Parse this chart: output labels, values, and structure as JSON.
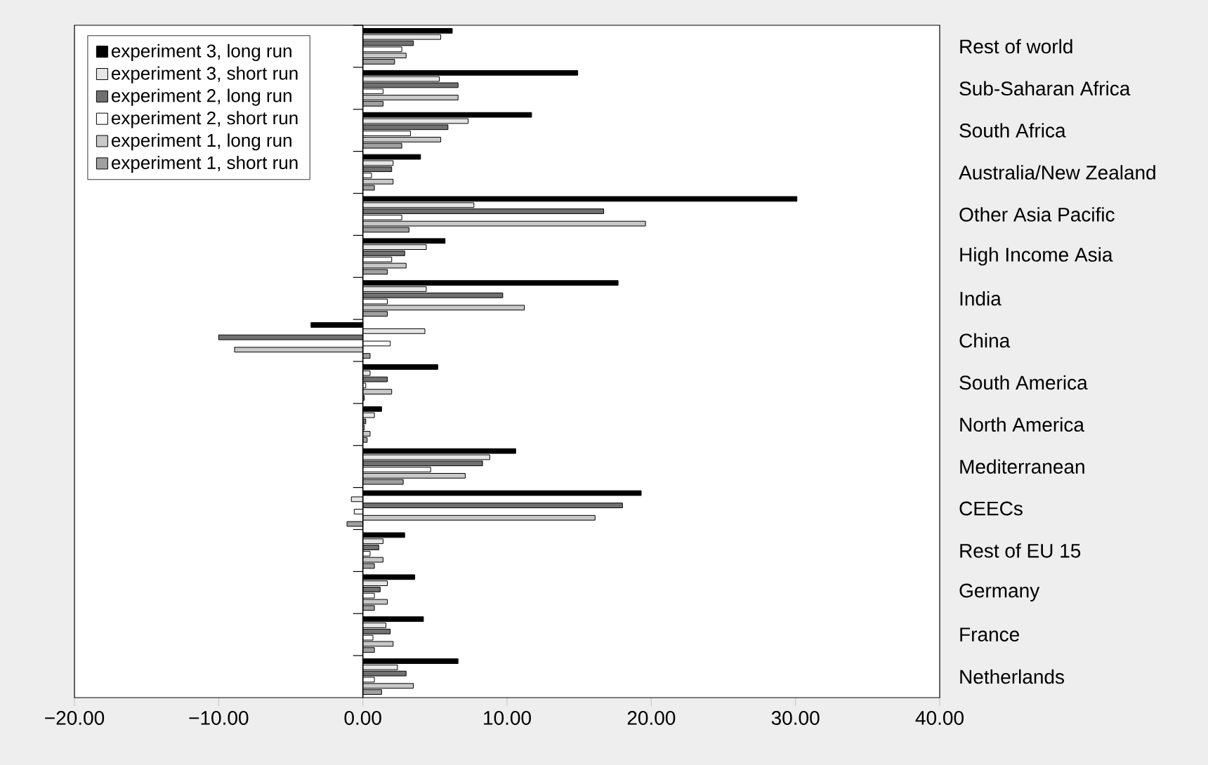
{
  "chart_data": {
    "type": "bar",
    "orientation": "horizontal",
    "categories": [
      "Rest of world",
      "Sub-Saharan Africa",
      "South Africa",
      "Australia/New Zealand",
      "Other Asia Pacific",
      "High Income Asia",
      "India",
      "China",
      "South America",
      "North America",
      "Mediterranean",
      "CEECs",
      "Rest of EU 15",
      "Germany",
      "France",
      "Netherlands"
    ],
    "series": [
      {
        "name": "experiment 3, long run",
        "color": "#000000",
        "values": [
          6.2,
          14.9,
          11.7,
          4.0,
          30.1,
          5.7,
          17.7,
          -3.6,
          5.2,
          1.3,
          10.6,
          19.3,
          2.9,
          3.6,
          4.2,
          6.6
        ]
      },
      {
        "name": "experiment 3, short run",
        "color": "#e6e6e6",
        "values": [
          5.4,
          5.3,
          7.3,
          2.1,
          7.7,
          4.4,
          4.4,
          4.3,
          0.5,
          0.8,
          8.8,
          -0.8,
          1.4,
          1.7,
          1.6,
          2.4
        ]
      },
      {
        "name": "experiment 2, long run",
        "color": "#707070",
        "values": [
          3.5,
          6.6,
          5.9,
          2.0,
          16.7,
          2.9,
          9.7,
          -10.0,
          1.7,
          0.2,
          8.3,
          18.0,
          1.1,
          1.2,
          1.9,
          3.0
        ]
      },
      {
        "name": "experiment 2, short run",
        "color": "#ffffff",
        "values": [
          2.7,
          1.4,
          3.3,
          0.6,
          2.7,
          2.0,
          1.7,
          1.9,
          0.2,
          0.1,
          4.7,
          -0.6,
          0.5,
          0.8,
          0.7,
          0.8
        ]
      },
      {
        "name": "experiment 1, long run",
        "color": "#c8c8c8",
        "values": [
          3.0,
          6.6,
          5.4,
          2.1,
          19.6,
          3.0,
          11.2,
          -8.9,
          2.0,
          0.5,
          7.1,
          16.1,
          1.4,
          1.7,
          2.1,
          3.5
        ]
      },
      {
        "name": "experiment 1, short run",
        "color": "#a0a0a0",
        "values": [
          2.2,
          1.4,
          2.7,
          0.8,
          3.2,
          1.7,
          1.7,
          0.5,
          0.1,
          0.3,
          2.8,
          -1.1,
          0.8,
          0.8,
          0.8,
          1.3
        ]
      }
    ],
    "xlim": [
      -20,
      40
    ],
    "xticks": [
      {
        "value": -20,
        "label": "−20.00"
      },
      {
        "value": -10,
        "label": "−10.00"
      },
      {
        "value": 0,
        "label": "0.00"
      },
      {
        "value": 10,
        "label": "10.00"
      },
      {
        "value": 20,
        "label": "20.00"
      },
      {
        "value": 30,
        "label": "30.00"
      },
      {
        "value": 40,
        "label": "40.00"
      }
    ],
    "legend": "top left"
  }
}
